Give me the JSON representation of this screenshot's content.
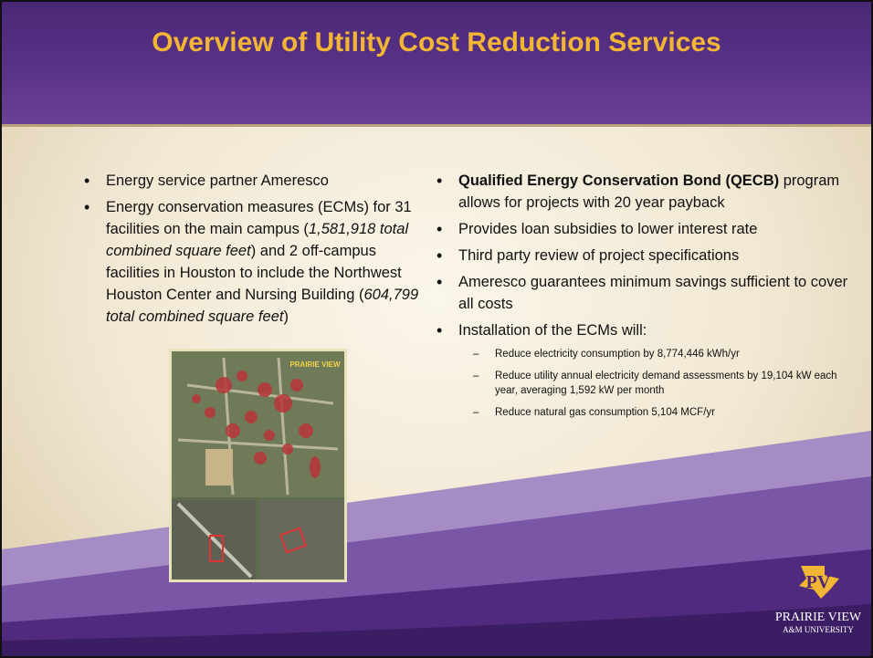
{
  "title": "Overview of Utility Cost Reduction Services",
  "left_bullets": [
    {
      "runs": [
        {
          "text": "Energy service partner Ameresco"
        }
      ]
    },
    {
      "runs": [
        {
          "text": "Energy conservation measures (ECMs) for 31 facilities on the main campus ("
        },
        {
          "text": "1,581,918 total combined square feet",
          "italic": true
        },
        {
          "text": ") and 2 off-campus facilities in Houston to include the Northwest Houston Center and Nursing Building ("
        },
        {
          "text": "604,799 total combined square feet",
          "italic": true
        },
        {
          "text": ")"
        }
      ]
    }
  ],
  "right_bullets": [
    {
      "runs": [
        {
          "text": "Qualified Energy Conservation Bond (QECB)",
          "bold": true
        },
        {
          "text": " program allows for projects with 20 year payback"
        }
      ]
    },
    {
      "runs": [
        {
          "text": "Provides loan subsidies to lower interest rate"
        }
      ]
    },
    {
      "runs": [
        {
          "text": "Third party review of project specifications"
        }
      ]
    },
    {
      "runs": [
        {
          "text": "Ameresco guarantees minimum savings sufficient to cover all costs"
        }
      ]
    },
    {
      "runs": [
        {
          "text": "Installation of the ECMs will:"
        }
      ],
      "sub_bullets": [
        "Reduce electricity consumption by 8,774,446 kWh/yr",
        "Reduce utility annual electricity demand assessments by 19,104 kW each year, averaging 1,592 kW per month",
        "Reduce natural gas consumption 5,104 MCF/yr"
      ]
    }
  ],
  "image": {
    "label": "PRAIRIE VIEW"
  },
  "logo": {
    "name": "PRAIRIE VIEW",
    "subname": "A&M UNIVERSITY"
  }
}
